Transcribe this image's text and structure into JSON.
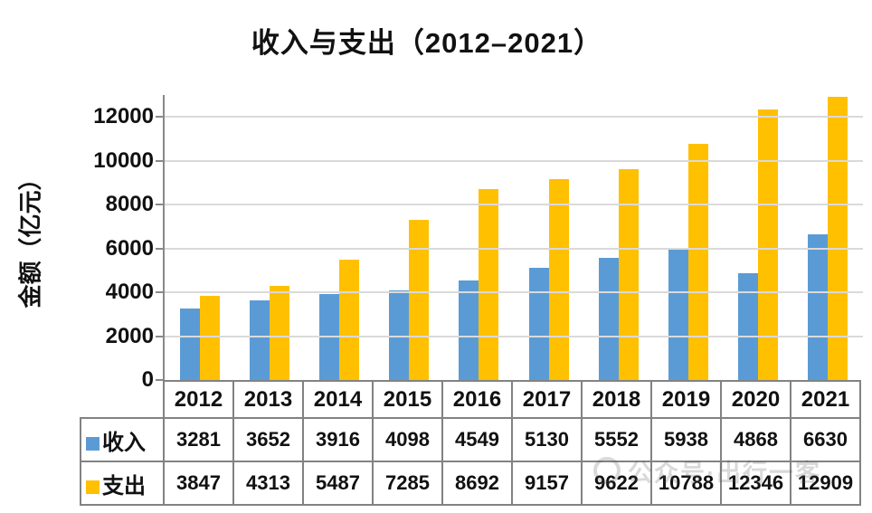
{
  "title": "收入与支出（2012–2021）",
  "watermark": {
    "text": "公众号·出行一客"
  },
  "colors": {
    "income_bar": "#5B9BD5",
    "expense_bar": "#FFC000",
    "gridline": "#DADADA",
    "axis": "#898989",
    "table_border": "#828282",
    "text": "#111111"
  },
  "chart_data": {
    "type": "bar",
    "title": "收入与支出（2012–2021）",
    "xlabel": "",
    "ylabel": "金额（亿元）",
    "categories": [
      "2012",
      "2013",
      "2014",
      "2015",
      "2016",
      "2017",
      "2018",
      "2019",
      "2020",
      "2021"
    ],
    "series": [
      {
        "key": "income",
        "name": "收入",
        "color": "#5B9BD5",
        "values": [
          3281,
          3652,
          3916,
          4098,
          4549,
          5130,
          5552,
          5938,
          4868,
          6630
        ]
      },
      {
        "key": "expense",
        "name": "支出",
        "color": "#FFC000",
        "values": [
          3847,
          4313,
          5487,
          7285,
          8692,
          9157,
          9622,
          10788,
          12346,
          12909
        ]
      }
    ],
    "ylim": [
      0,
      13000
    ],
    "yticks": [
      0,
      2000,
      4000,
      6000,
      8000,
      10000,
      12000
    ],
    "grid": true,
    "legend_position": "table-left"
  }
}
